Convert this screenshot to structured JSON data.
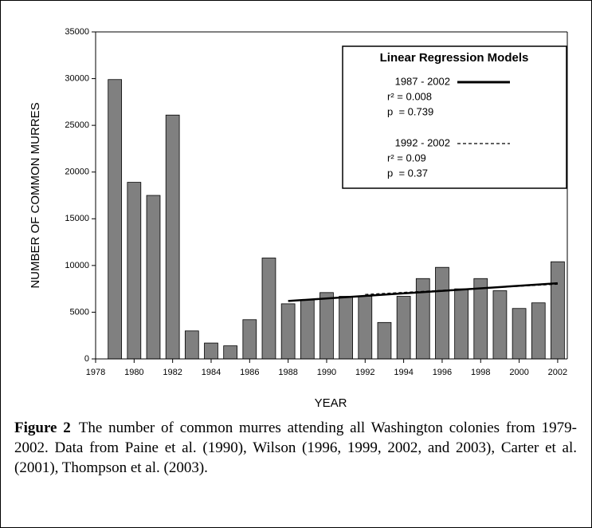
{
  "chart_data": {
    "type": "bar",
    "x_label": "YEAR",
    "y_label": "NUMBER OF COMMON MURRES",
    "x": [
      1979,
      1980,
      1981,
      1982,
      1983,
      1984,
      1985,
      1986,
      1987,
      1988,
      1989,
      1990,
      1991,
      1992,
      1993,
      1994,
      1995,
      1996,
      1997,
      1998,
      1999,
      2000,
      2001,
      2002
    ],
    "values": [
      29900,
      18900,
      17500,
      26100,
      3000,
      1700,
      1400,
      4200,
      10800,
      5900,
      6300,
      7100,
      6700,
      6700,
      3900,
      6700,
      8600,
      9800,
      7500,
      8600,
      7300,
      5400,
      6000,
      10400
    ],
    "color": "#808080",
    "xlim": [
      1978,
      2002.5
    ],
    "xticks": [
      1978,
      1980,
      1982,
      1984,
      1986,
      1988,
      1990,
      1992,
      1994,
      1996,
      1998,
      2000,
      2002
    ],
    "ylim": [
      0,
      35000
    ],
    "yticks": [
      0,
      5000,
      10000,
      15000,
      20000,
      25000,
      30000,
      35000
    ],
    "legend_title": "Linear Regression Models",
    "lines": [
      {
        "name": "1987 - 2002",
        "r2": "r² = 0.008",
        "p": "p  = 0.739",
        "style": "solid",
        "color": "#000000",
        "x": [
          1988,
          2002
        ],
        "values": [
          6200,
          8100
        ]
      },
      {
        "name": "1992 - 2002",
        "r2": "r² = 0.09",
        "p": "p  = 0.37",
        "style": "dashed",
        "color": "#000000",
        "x": [
          1992,
          2002
        ],
        "values": [
          6900,
          8000
        ]
      }
    ]
  },
  "caption": {
    "label": "Figure 2",
    "text": "The number of common murres attending all Washington colonies from 1979-2002.  Data from Paine et al. (1990), Wilson (1996, 1999, 2002, and 2003), Carter et al. (2001), Thompson et al. (2003)."
  }
}
